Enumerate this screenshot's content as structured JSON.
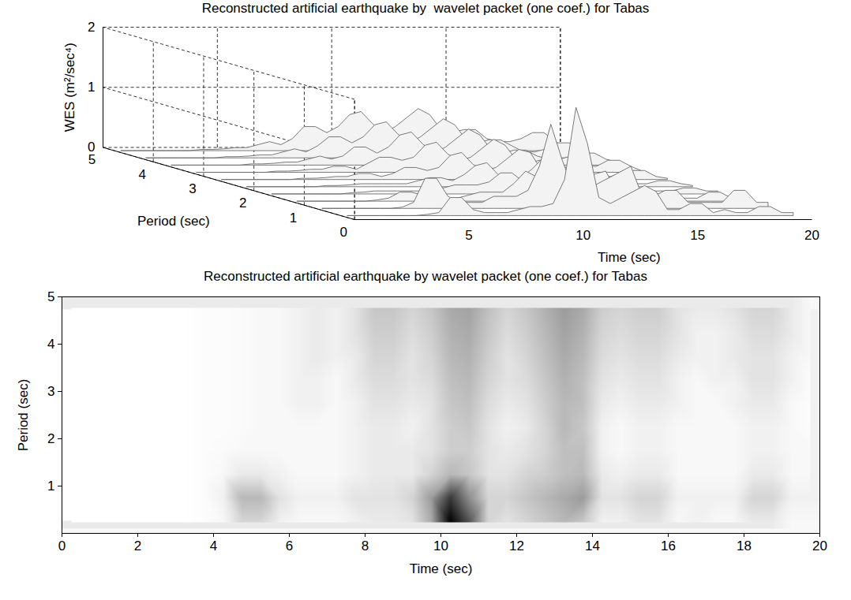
{
  "chart_data": [
    {
      "type": "surface3d",
      "title": "Reconstructed artificial earthquake by  wavelet packet (one coef.) for Tabas",
      "xlabel": "Time (sec)",
      "ylabel": "Period (sec)",
      "zlabel": "WES (m²/sec⁴)",
      "xlim": [
        0,
        20
      ],
      "xticks": [
        5,
        10,
        15,
        20
      ],
      "ylim": [
        0,
        5
      ],
      "yticks": [
        0,
        1,
        2,
        3,
        4,
        5
      ],
      "zlim": [
        0,
        2
      ],
      "zticks": [
        0,
        1,
        2
      ],
      "grid": true,
      "x": [
        0.25,
        0.75,
        1.25,
        1.75,
        2.25,
        2.75,
        3.25,
        3.75,
        4.25,
        4.75,
        5.25,
        5.75,
        6.25,
        6.75,
        7.25,
        7.75,
        8.25,
        8.75,
        9.25,
        9.75,
        10.25,
        10.75,
        11.25,
        11.75,
        12.25,
        12.75,
        13.25,
        13.75,
        14.25,
        14.75,
        15.25,
        15.75,
        16.25,
        16.75,
        17.25,
        17.75,
        18.25,
        18.75,
        19.25,
        19.75
      ],
      "y": [
        0.25,
        0.75,
        1.25,
        1.75,
        2.25,
        2.75,
        3.25,
        3.75,
        4.25,
        4.75
      ],
      "values": [
        [
          0,
          0,
          0,
          0,
          0,
          0,
          0,
          0.02,
          0.05,
          0.3,
          0.3,
          0.1,
          0.05,
          0.05,
          0.05,
          0.1,
          0.15,
          0.15,
          0.2,
          0.6,
          1.8,
          1.2,
          0.3,
          0.2,
          0.3,
          0.4,
          0.5,
          0.4,
          0.1,
          0.1,
          0.2,
          0.2,
          0.05,
          0.1,
          0.05,
          0.05,
          0.15,
          0.15,
          0.05,
          0.05
        ],
        [
          0,
          0,
          0,
          0,
          0,
          0,
          0,
          0.02,
          0.1,
          0.5,
          0.5,
          0.2,
          0.1,
          0.1,
          0.1,
          0.2,
          0.2,
          0.2,
          0.3,
          0.7,
          1.4,
          0.8,
          0.3,
          0.3,
          0.4,
          0.5,
          0.6,
          0.7,
          0.2,
          0.2,
          0.3,
          0.3,
          0.1,
          0.1,
          0.1,
          0.1,
          0.3,
          0.3,
          0.1,
          0.1
        ],
        [
          0,
          0,
          0,
          0,
          0,
          0,
          0,
          0.02,
          0.05,
          0.15,
          0.15,
          0.1,
          0.05,
          0.05,
          0.05,
          0.1,
          0.15,
          0.15,
          0.15,
          0.3,
          0.5,
          0.4,
          0.2,
          0.2,
          0.3,
          0.35,
          0.45,
          0.5,
          0.15,
          0.1,
          0.15,
          0.15,
          0.05,
          0.05,
          0.05,
          0.05,
          0.15,
          0.15,
          0.05,
          0.05
        ],
        [
          0,
          0,
          0,
          0,
          0,
          0,
          0,
          0.02,
          0.03,
          0.05,
          0.05,
          0.05,
          0.05,
          0.05,
          0.05,
          0.1,
          0.15,
          0.15,
          0.15,
          0.2,
          0.35,
          0.35,
          0.2,
          0.15,
          0.2,
          0.3,
          0.45,
          0.45,
          0.1,
          0.05,
          0.1,
          0.1,
          0.05,
          0.05,
          0.05,
          0.05,
          0.1,
          0.1,
          0.05,
          0.05
        ],
        [
          0,
          0,
          0,
          0,
          0,
          0,
          0,
          0.02,
          0.02,
          0.03,
          0.05,
          0.05,
          0.05,
          0.05,
          0.05,
          0.1,
          0.15,
          0.15,
          0.1,
          0.2,
          0.35,
          0.4,
          0.2,
          0.1,
          0.15,
          0.3,
          0.5,
          0.4,
          0.1,
          0.05,
          0.1,
          0.1,
          0.05,
          0.05,
          0.05,
          0.05,
          0.1,
          0.1,
          0.05,
          0.02
        ],
        [
          0,
          0,
          0,
          0,
          0,
          0,
          0,
          0.02,
          0.02,
          0.03,
          0.05,
          0.05,
          0.1,
          0.1,
          0.05,
          0.1,
          0.2,
          0.2,
          0.15,
          0.2,
          0.4,
          0.45,
          0.25,
          0.15,
          0.2,
          0.35,
          0.5,
          0.45,
          0.15,
          0.1,
          0.15,
          0.15,
          0.1,
          0.05,
          0.05,
          0.1,
          0.15,
          0.15,
          0.05,
          0.02
        ],
        [
          0,
          0,
          0,
          0,
          0,
          0,
          0,
          0.02,
          0.02,
          0.03,
          0.05,
          0.05,
          0.1,
          0.1,
          0.05,
          0.15,
          0.25,
          0.25,
          0.2,
          0.25,
          0.45,
          0.5,
          0.3,
          0.2,
          0.25,
          0.4,
          0.55,
          0.45,
          0.2,
          0.15,
          0.2,
          0.2,
          0.1,
          0.05,
          0.1,
          0.1,
          0.2,
          0.2,
          0.1,
          0.02
        ],
        [
          0,
          0,
          0,
          0,
          0,
          0,
          0,
          0.02,
          0.02,
          0.03,
          0.05,
          0.05,
          0.1,
          0.15,
          0.1,
          0.15,
          0.3,
          0.3,
          0.2,
          0.3,
          0.5,
          0.55,
          0.35,
          0.2,
          0.3,
          0.45,
          0.6,
          0.5,
          0.25,
          0.2,
          0.25,
          0.25,
          0.15,
          0.1,
          0.1,
          0.15,
          0.2,
          0.2,
          0.1,
          0.05
        ],
        [
          0,
          0,
          0,
          0,
          0,
          0,
          0,
          0.02,
          0.02,
          0.03,
          0.05,
          0.05,
          0.1,
          0.15,
          0.1,
          0.2,
          0.35,
          0.35,
          0.25,
          0.35,
          0.55,
          0.6,
          0.4,
          0.25,
          0.35,
          0.5,
          0.65,
          0.55,
          0.3,
          0.25,
          0.3,
          0.3,
          0.2,
          0.1,
          0.1,
          0.15,
          0.25,
          0.25,
          0.15,
          0.05
        ],
        [
          0,
          0,
          0,
          0,
          0,
          0,
          0,
          0.02,
          0.02,
          0.03,
          0.05,
          0.05,
          0.1,
          0.15,
          0.1,
          0.2,
          0.4,
          0.4,
          0.3,
          0.4,
          0.6,
          0.65,
          0.45,
          0.3,
          0.4,
          0.55,
          0.7,
          0.6,
          0.35,
          0.3,
          0.35,
          0.35,
          0.2,
          0.15,
          0.15,
          0.2,
          0.3,
          0.3,
          0.15,
          0.05
        ]
      ]
    },
    {
      "type": "heatmap",
      "title": "Reconstructed artificial earthquake by wavelet packet (one coef.) for Tabas",
      "xlabel": "Time (sec)",
      "ylabel": "Period (sec)",
      "xlim": [
        0,
        20
      ],
      "xticks": [
        0,
        2,
        4,
        6,
        8,
        10,
        12,
        14,
        16,
        18,
        20
      ],
      "ylim": [
        0,
        5
      ],
      "yticks": [
        1,
        2,
        3,
        4,
        5
      ],
      "x": [
        0.25,
        0.75,
        1.25,
        1.75,
        2.25,
        2.75,
        3.25,
        3.75,
        4.25,
        4.75,
        5.25,
        5.75,
        6.25,
        6.75,
        7.25,
        7.75,
        8.25,
        8.75,
        9.25,
        9.75,
        10.25,
        10.75,
        11.25,
        11.75,
        12.25,
        12.75,
        13.25,
        13.75,
        14.25,
        14.75,
        15.25,
        15.75,
        16.25,
        16.75,
        17.25,
        17.75,
        18.25,
        18.75,
        19.25,
        19.75
      ],
      "y": [
        0.25,
        0.75,
        1.25,
        1.75,
        2.25,
        2.75,
        3.25,
        3.75,
        4.25,
        4.75
      ],
      "values": [
        [
          0,
          0,
          0,
          0,
          0,
          0,
          0,
          0.02,
          0.05,
          0.3,
          0.3,
          0.1,
          0.05,
          0.05,
          0.05,
          0.1,
          0.15,
          0.15,
          0.2,
          0.6,
          1.8,
          1.2,
          0.3,
          0.2,
          0.3,
          0.4,
          0.5,
          0.4,
          0.1,
          0.1,
          0.2,
          0.2,
          0.05,
          0.1,
          0.05,
          0.05,
          0.15,
          0.15,
          0.05,
          0.05
        ],
        [
          0,
          0,
          0,
          0,
          0,
          0,
          0,
          0.02,
          0.1,
          0.5,
          0.5,
          0.2,
          0.1,
          0.1,
          0.1,
          0.2,
          0.2,
          0.2,
          0.3,
          0.7,
          1.4,
          0.8,
          0.3,
          0.3,
          0.4,
          0.5,
          0.6,
          0.7,
          0.2,
          0.2,
          0.3,
          0.3,
          0.1,
          0.1,
          0.1,
          0.1,
          0.3,
          0.3,
          0.1,
          0.1
        ],
        [
          0,
          0,
          0,
          0,
          0,
          0,
          0,
          0.02,
          0.05,
          0.15,
          0.15,
          0.1,
          0.05,
          0.05,
          0.05,
          0.1,
          0.15,
          0.15,
          0.15,
          0.3,
          0.5,
          0.4,
          0.2,
          0.2,
          0.3,
          0.35,
          0.45,
          0.5,
          0.15,
          0.1,
          0.15,
          0.15,
          0.05,
          0.05,
          0.05,
          0.05,
          0.15,
          0.15,
          0.05,
          0.05
        ],
        [
          0,
          0,
          0,
          0,
          0,
          0,
          0,
          0.02,
          0.03,
          0.05,
          0.05,
          0.05,
          0.05,
          0.05,
          0.05,
          0.1,
          0.15,
          0.15,
          0.15,
          0.2,
          0.35,
          0.35,
          0.2,
          0.15,
          0.2,
          0.3,
          0.45,
          0.45,
          0.1,
          0.05,
          0.1,
          0.1,
          0.05,
          0.05,
          0.05,
          0.05,
          0.1,
          0.1,
          0.05,
          0.05
        ],
        [
          0,
          0,
          0,
          0,
          0,
          0,
          0,
          0.02,
          0.02,
          0.03,
          0.05,
          0.05,
          0.05,
          0.05,
          0.05,
          0.1,
          0.15,
          0.15,
          0.1,
          0.2,
          0.35,
          0.4,
          0.2,
          0.1,
          0.15,
          0.3,
          0.5,
          0.4,
          0.1,
          0.05,
          0.1,
          0.1,
          0.05,
          0.05,
          0.05,
          0.05,
          0.1,
          0.1,
          0.05,
          0.02
        ],
        [
          0,
          0,
          0,
          0,
          0,
          0,
          0,
          0.02,
          0.02,
          0.03,
          0.05,
          0.05,
          0.1,
          0.1,
          0.05,
          0.1,
          0.2,
          0.2,
          0.15,
          0.2,
          0.4,
          0.45,
          0.25,
          0.15,
          0.2,
          0.35,
          0.5,
          0.45,
          0.15,
          0.1,
          0.15,
          0.15,
          0.1,
          0.05,
          0.05,
          0.1,
          0.15,
          0.15,
          0.05,
          0.02
        ],
        [
          0,
          0,
          0,
          0,
          0,
          0,
          0,
          0.02,
          0.02,
          0.03,
          0.05,
          0.05,
          0.1,
          0.1,
          0.05,
          0.15,
          0.25,
          0.25,
          0.2,
          0.25,
          0.45,
          0.5,
          0.3,
          0.2,
          0.25,
          0.4,
          0.55,
          0.45,
          0.2,
          0.15,
          0.2,
          0.2,
          0.1,
          0.05,
          0.1,
          0.1,
          0.2,
          0.2,
          0.1,
          0.02
        ],
        [
          0,
          0,
          0,
          0,
          0,
          0,
          0,
          0.02,
          0.02,
          0.03,
          0.05,
          0.05,
          0.1,
          0.15,
          0.1,
          0.15,
          0.3,
          0.3,
          0.2,
          0.3,
          0.5,
          0.55,
          0.35,
          0.2,
          0.3,
          0.45,
          0.6,
          0.5,
          0.25,
          0.2,
          0.25,
          0.25,
          0.15,
          0.1,
          0.1,
          0.15,
          0.2,
          0.2,
          0.1,
          0.05
        ],
        [
          0,
          0,
          0,
          0,
          0,
          0,
          0,
          0.02,
          0.02,
          0.03,
          0.05,
          0.05,
          0.1,
          0.15,
          0.1,
          0.2,
          0.35,
          0.35,
          0.25,
          0.35,
          0.55,
          0.6,
          0.4,
          0.25,
          0.35,
          0.5,
          0.65,
          0.55,
          0.3,
          0.25,
          0.3,
          0.3,
          0.2,
          0.1,
          0.1,
          0.15,
          0.25,
          0.25,
          0.15,
          0.05
        ],
        [
          0,
          0,
          0,
          0,
          0,
          0,
          0,
          0.02,
          0.02,
          0.03,
          0.05,
          0.05,
          0.1,
          0.15,
          0.1,
          0.2,
          0.4,
          0.4,
          0.3,
          0.4,
          0.6,
          0.65,
          0.45,
          0.3,
          0.4,
          0.55,
          0.7,
          0.6,
          0.35,
          0.3,
          0.35,
          0.35,
          0.2,
          0.15,
          0.15,
          0.2,
          0.3,
          0.3,
          0.15,
          0.05
        ]
      ]
    }
  ]
}
